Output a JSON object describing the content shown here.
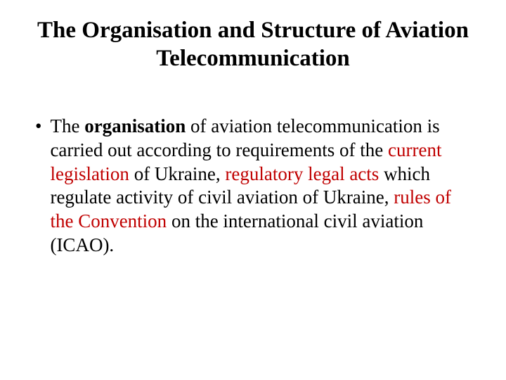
{
  "title": "The Organisation and Structure of Aviation Telecommunication",
  "bullet_marker": "•",
  "body": {
    "part1": "The ",
    "organisation": "organisation",
    "part2": " of aviation telecommunication is carried out according to requirements of the ",
    "current_legislation": "current legislation",
    "part3": " of Ukraine, ",
    "regulatory_legal_acts": "regulatory legal acts",
    "part4": " which regulate activity of civil aviation of Ukraine, ",
    "rules_of_convention": "rules of the Convention",
    "part5": " on the international civil aviation (ICAO)."
  },
  "colors": {
    "text": "#000000",
    "highlight": "#c00000",
    "background": "#ffffff"
  },
  "typography": {
    "title_fontsize": 33,
    "body_fontsize": 27,
    "font_family": "Times New Roman"
  }
}
